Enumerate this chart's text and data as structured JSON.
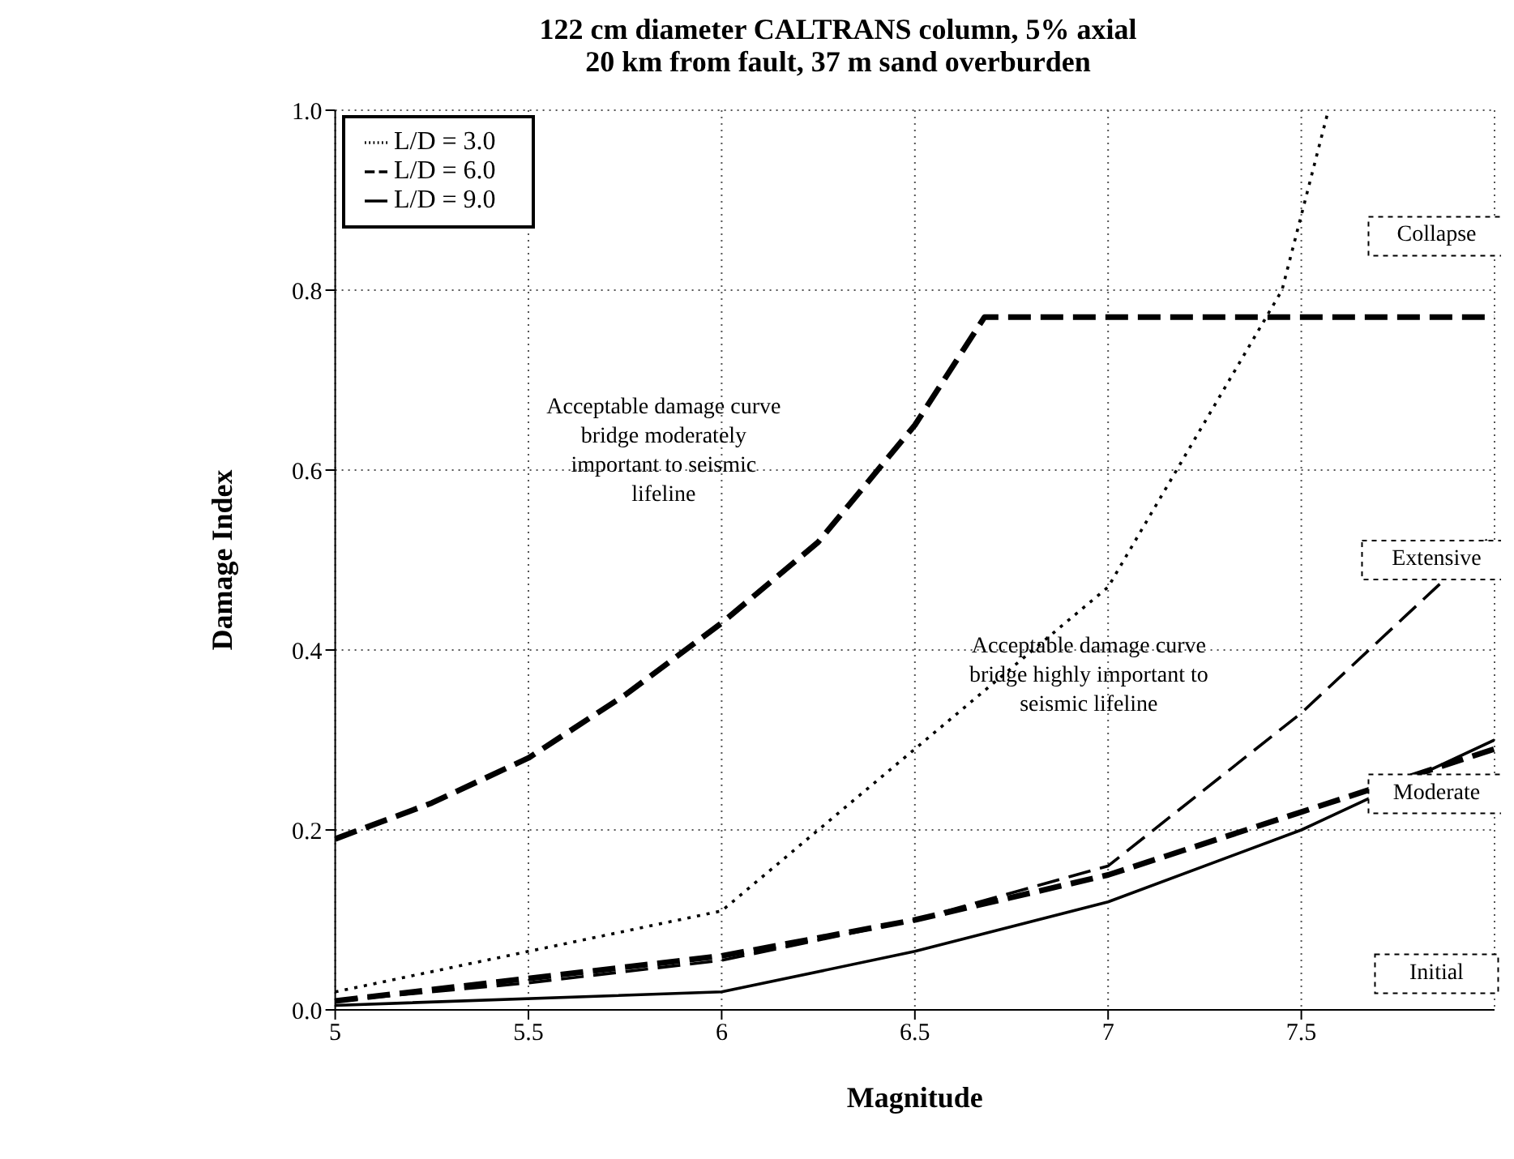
{
  "chart_data": {
    "type": "line",
    "title": "122 cm diameter CALTRANS column, 5% axial",
    "subtitle": "20 km from fault, 37 m sand overburden",
    "xlabel": "Magnitude",
    "ylabel": "Damage Index",
    "xlim": [
      5,
      8
    ],
    "xticks": [
      5,
      5.5,
      6,
      6.5,
      7,
      7.5
    ],
    "ylim": [
      0,
      1
    ],
    "yticks": [
      {
        "value": 0,
        "label": "0.0"
      },
      0.2,
      0.4,
      0.6,
      0.8,
      {
        "value": 1,
        "label": "1.0"
      }
    ],
    "grid": true,
    "legend": "top left",
    "marker": "none",
    "series": [
      {
        "name": "L/D = 3.0",
        "color": "#000000",
        "line_style": "dotted",
        "x": [
          5,
          5.5,
          6,
          6.5,
          7,
          7.45,
          7.57
        ],
        "values": [
          0.02,
          0.065,
          0.11,
          0.29,
          0.47,
          0.8,
          1.0
        ]
      },
      {
        "name": "L/D = 6.0",
        "color": "#000000",
        "line_style": "dashed",
        "x": [
          5,
          5.5,
          6,
          6.5,
          7,
          7.5,
          8
        ],
        "values": [
          0.01,
          0.03,
          0.055,
          0.1,
          0.16,
          0.33,
          0.53
        ]
      },
      {
        "name": "L/D = 9.0",
        "color": "#000000",
        "line_style": "solid",
        "x": [
          5,
          6,
          6.5,
          7,
          7.5,
          8
        ],
        "values": [
          0.005,
          0.02,
          0.065,
          0.12,
          0.2,
          0.3
        ]
      },
      {
        "color": "#000000",
        "line_style": "dashed",
        "x": [
          5,
          5.25,
          5.5,
          5.75,
          6,
          6.25,
          6.5,
          6.68,
          8
        ],
        "values": [
          0.19,
          0.23,
          0.28,
          0.35,
          0.43,
          0.52,
          0.65,
          0.77,
          0.77
        ]
      },
      {
        "color": "#000000",
        "line_style": "dashed",
        "x": [
          5,
          5.5,
          6,
          6.5,
          7,
          7.5,
          8
        ],
        "values": [
          0.01,
          0.035,
          0.06,
          0.1,
          0.15,
          0.22,
          0.29
        ]
      }
    ],
    "annotations": [
      "Acceptable damage curve bridge moderately important to seismic lifeline",
      "Acceptable damage curve bridge highly important to seismic lifeline",
      "Collapse",
      "Extensive",
      "Moderate",
      "Initial"
    ]
  }
}
